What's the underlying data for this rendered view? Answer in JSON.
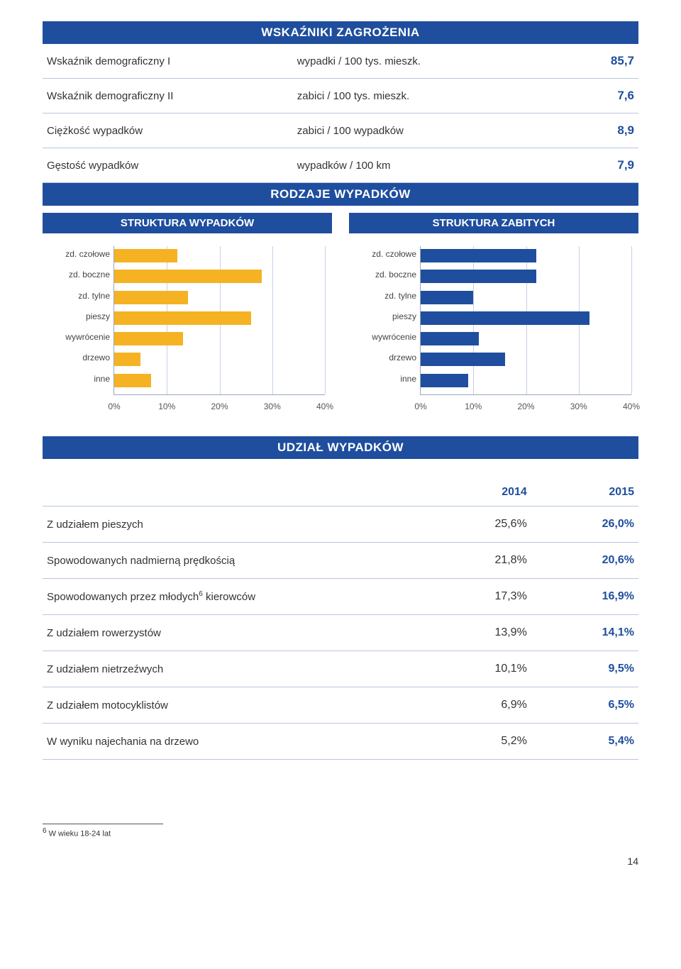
{
  "headers": {
    "metrics": "WSKAŹNIKI ZAGROŻENIA",
    "types": "RODZAJE WYPADKÓW",
    "share": "UDZIAŁ WYPADKÓW",
    "struct_acc": "STRUKTURA WYPADKÓW",
    "struct_fat": "STRUKTURA ZABITYCH"
  },
  "metrics_rows": [
    {
      "label": "Wskaźnik demograficzny I",
      "unit": "wypadki / 100 tys. mieszk.",
      "value": "85,7"
    },
    {
      "label": "Wskaźnik demograficzny II",
      "unit": "zabici / 100 tys. mieszk.",
      "value": "7,6"
    },
    {
      "label": "Ciężkość wypadków",
      "unit": "zabici / 100 wypadków",
      "value": "8,9"
    },
    {
      "label": "Gęstość wypadków",
      "unit": "wypadków / 100 km",
      "value": "7,9"
    }
  ],
  "charts": {
    "categories": [
      "zd. czołowe",
      "zd. boczne",
      "zd. tylne",
      "pieszy",
      "wywrócenie",
      "drzewo",
      "inne"
    ],
    "xmax": 40,
    "xtick_step": 10,
    "xtick_labels": [
      "0%",
      "10%",
      "20%",
      "30%",
      "40%"
    ],
    "bar_height_pct": 11,
    "row_gap_pct": 14.0,
    "accidents": {
      "color": "#f5b324",
      "grid_color": "#c7d0e6",
      "values": [
        12,
        28,
        14,
        26,
        13,
        5,
        7
      ]
    },
    "fatalities": {
      "color": "#1f4e9e",
      "grid_color": "#c7d0e6",
      "values": [
        22,
        22,
        10,
        32,
        11,
        16,
        9
      ]
    }
  },
  "share": {
    "year_prev": "2014",
    "year_curr": "2015",
    "rows": [
      {
        "label": "Z udziałem pieszych",
        "sup": "",
        "prev": "25,6%",
        "curr": "26,0%"
      },
      {
        "label": "Spowodowanych nadmierną prędkością",
        "sup": "",
        "prev": "21,8%",
        "curr": "20,6%"
      },
      {
        "label": "Spowodowanych przez młodych",
        "sup": "6",
        "suffix": " kierowców",
        "prev": "17,3%",
        "curr": "16,9%"
      },
      {
        "label": "Z udziałem rowerzystów",
        "sup": "",
        "prev": "13,9%",
        "curr": "14,1%"
      },
      {
        "label": "Z udziałem nietrzeźwych",
        "sup": "",
        "prev": "10,1%",
        "curr": "9,5%"
      },
      {
        "label": "Z udziałem motocyklistów",
        "sup": "",
        "prev": "6,9%",
        "curr": "6,5%"
      },
      {
        "label": "W wyniku najechania na drzewo",
        "sup": "",
        "prev": "5,2%",
        "curr": "5,4%"
      }
    ]
  },
  "footnote": {
    "num": "6",
    "text": " W wieku 18-24 lat"
  },
  "page_number": "14"
}
